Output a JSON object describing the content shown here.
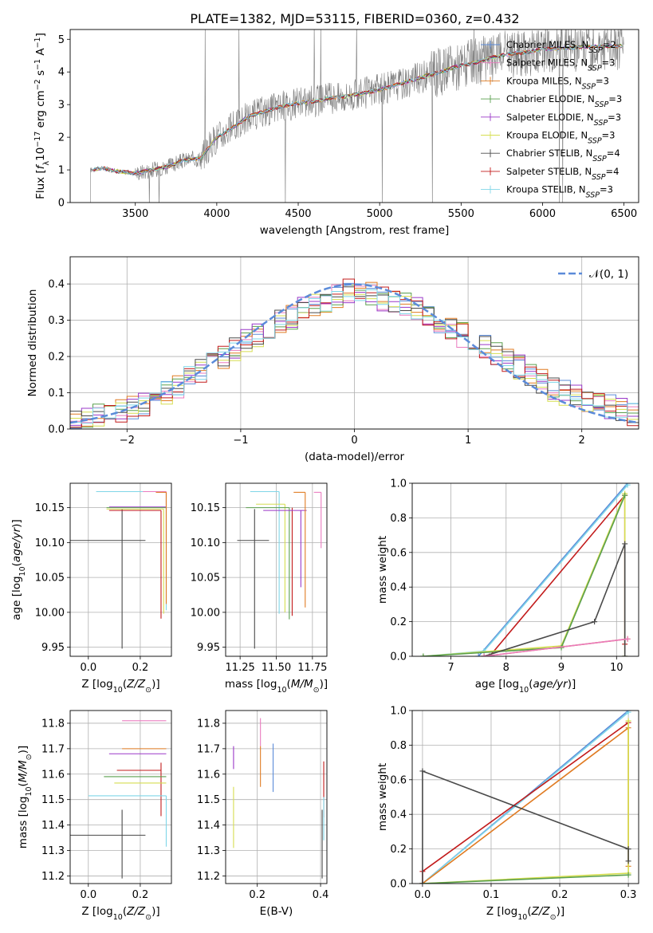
{
  "title": "PLATE=1382, MJD=53115, FIBERID=0360, z=0.432",
  "colors": {
    "Chabrier MILES": "#5b8bd9",
    "Salpeter MILES": "#ea7bbf",
    "Kroupa MILES": "#e07b22",
    "Chabrier ELODIE": "#5a9f4e",
    "Salpeter ELODIE": "#9a38c8",
    "Kroupa ELODIE": "#d6de50",
    "Chabrier STELIB": "#4a4a4a",
    "Salpeter STELIB": "#c21b1b",
    "Kroupa STELIB": "#7fd6e8"
  },
  "chart_data": [
    {
      "id": "spectrum",
      "type": "line",
      "xlabel": "wavelength [Angstrom, rest frame]",
      "ylabel": "Flux [f_λ 10^-17 erg cm^-2 s^-1 A^-1]",
      "xlim": [
        3100,
        6590
      ],
      "ylim": [
        0,
        5.3
      ],
      "xticks": [
        3500,
        4000,
        4500,
        5000,
        5500,
        6000,
        6500
      ],
      "yticks": [
        0,
        1,
        2,
        3,
        4,
        5
      ],
      "legend_position": "right",
      "legend": [
        {
          "model": "Chabrier MILES",
          "base": "Chabrier MILES, N",
          "sub": "SSP",
          "eq": "=2"
        },
        {
          "model": "Salpeter MILES",
          "base": "Salpeter MILES, N",
          "sub": "SSP",
          "eq": "=3"
        },
        {
          "model": "Kroupa MILES",
          "base": "Kroupa MILES, N",
          "sub": "SSP",
          "eq": "=3"
        },
        {
          "model": "Chabrier ELODIE",
          "base": "Chabrier ELODIE, N",
          "sub": "SSP",
          "eq": "=3"
        },
        {
          "model": "Salpeter ELODIE",
          "base": "Salpeter ELODIE, N",
          "sub": "SSP",
          "eq": "=3"
        },
        {
          "model": "Kroupa ELODIE",
          "base": "Kroupa ELODIE, N",
          "sub": "SSP",
          "eq": "=3"
        },
        {
          "model": "Chabrier STELIB",
          "base": "Chabrier STELIB, N",
          "sub": "SSP",
          "eq": "=4"
        },
        {
          "model": "Salpeter STELIB",
          "base": "Salpeter STELIB, N",
          "sub": "SSP",
          "eq": "=4"
        },
        {
          "model": "Kroupa STELIB",
          "base": "Kroupa STELIB, N",
          "sub": "SSP",
          "eq": "=3"
        }
      ],
      "continuum": [
        [
          3225,
          1.0
        ],
        [
          3300,
          1.05
        ],
        [
          3400,
          0.95
        ],
        [
          3500,
          0.9
        ],
        [
          3600,
          1.0
        ],
        [
          3700,
          1.1
        ],
        [
          3800,
          1.3
        ],
        [
          3900,
          1.35
        ],
        [
          4000,
          2.0
        ],
        [
          4100,
          2.3
        ],
        [
          4200,
          2.65
        ],
        [
          4300,
          2.8
        ],
        [
          4400,
          2.95
        ],
        [
          4500,
          3.05
        ],
        [
          4600,
          3.1
        ],
        [
          4700,
          3.2
        ],
        [
          4800,
          3.25
        ],
        [
          4900,
          3.35
        ],
        [
          5000,
          3.45
        ],
        [
          5100,
          3.6
        ],
        [
          5200,
          3.75
        ],
        [
          5300,
          3.9
        ],
        [
          5400,
          4.05
        ],
        [
          5500,
          4.2
        ],
        [
          5600,
          4.3
        ],
        [
          5700,
          4.45
        ],
        [
          5800,
          4.55
        ],
        [
          5900,
          4.6
        ],
        [
          6000,
          4.7
        ],
        [
          6100,
          4.72
        ],
        [
          6200,
          4.75
        ],
        [
          6300,
          4.78
        ],
        [
          6400,
          4.78
        ],
        [
          6500,
          4.8
        ]
      ]
    },
    {
      "id": "residuals",
      "type": "histogram",
      "xlabel": "(data-model)/error",
      "ylabel": "Normed distribution",
      "xlim": [
        -2.5,
        2.5
      ],
      "ylim": [
        0,
        0.475
      ],
      "xticks": [
        -2,
        -1,
        0,
        1,
        2
      ],
      "yticks": [
        0.0,
        0.1,
        0.2,
        0.3,
        0.4
      ],
      "bin_width": 0.1,
      "bin_start": -2.5,
      "reference": {
        "label": "𝒩(0, 1)",
        "mean": 0,
        "sigma": 1,
        "color": "#5b8bd9"
      },
      "legend_position": "top-right",
      "profile": [
        0.025,
        0.03,
        0.04,
        0.045,
        0.05,
        0.06,
        0.07,
        0.08,
        0.1,
        0.12,
        0.14,
        0.16,
        0.18,
        0.2,
        0.22,
        0.24,
        0.26,
        0.28,
        0.3,
        0.31,
        0.33,
        0.34,
        0.35,
        0.37,
        0.38,
        0.38,
        0.37,
        0.36,
        0.35,
        0.34,
        0.33,
        0.32,
        0.3,
        0.28,
        0.26,
        0.25,
        0.23,
        0.21,
        0.19,
        0.17,
        0.15,
        0.13,
        0.11,
        0.1,
        0.09,
        0.08,
        0.07,
        0.06,
        0.05,
        0.04
      ]
    },
    {
      "id": "age-vs-Z",
      "type": "errorbar",
      "xlabel": "Z [log10(Z/Z⊙)]",
      "ylabel": "age [log10(age/yr)]",
      "xlim": [
        -0.07,
        0.32
      ],
      "ylim": [
        9.937,
        10.185
      ],
      "xticks": [
        0.0,
        0.2
      ],
      "yticks": [
        9.95,
        10.0,
        10.05,
        10.1,
        10.15
      ],
      "points": [
        {
          "model": "Chabrier STELIB",
          "x": 0.13,
          "xerr": [
            0.23,
            0.09
          ],
          "y": 10.103,
          "yerr": [
            0.155,
            0.045
          ]
        },
        {
          "model": "Salpeter ELODIE",
          "x": 0.3,
          "xerr": [
            0.22,
            0.0
          ],
          "y": 10.151,
          "yerr": [
            0.0,
            0.0
          ]
        },
        {
          "model": "Chabrier ELODIE",
          "x": 0.3,
          "xerr": [
            0.23,
            0.0
          ],
          "y": 10.15,
          "yerr": [
            0.0,
            0.0
          ]
        },
        {
          "model": "Kroupa STELIB",
          "x": 0.3,
          "xerr": [
            0.27,
            0.0
          ],
          "y": 10.173,
          "yerr": [
            0.17,
            0.0
          ]
        },
        {
          "model": "Salpeter MILES",
          "x": 0.3,
          "xerr": [
            0.09,
            0.0
          ],
          "y": 10.173,
          "yerr": [
            0.07,
            0.0
          ]
        },
        {
          "model": "Kroupa MILES",
          "x": 0.3,
          "xerr": [
            0.04,
            0.0
          ],
          "y": 10.172,
          "yerr": [
            0.16,
            0.0
          ]
        },
        {
          "model": "Kroupa ELODIE",
          "x": 0.29,
          "xerr": [
            0.22,
            0.0
          ],
          "y": 10.148,
          "yerr": [
            0.15,
            0.0
          ]
        },
        {
          "model": "Salpeter STELIB",
          "x": 0.28,
          "xerr": [
            0.2,
            0.0
          ],
          "y": 10.146,
          "yerr": [
            0.155,
            0.0
          ]
        }
      ]
    },
    {
      "id": "age-vs-mass",
      "type": "errorbar",
      "xlabel": "mass [log10(M/M⊙)]",
      "ylabel": "",
      "xlim": [
        11.15,
        11.85
      ],
      "ylim": [
        9.937,
        10.185
      ],
      "xticks": [
        11.25,
        11.5,
        11.75
      ],
      "yticks": [
        9.95,
        10.0,
        10.05,
        10.1,
        10.15
      ],
      "points": [
        {
          "model": "Chabrier STELIB",
          "x": 11.35,
          "xerr": [
            0.12,
            0.1
          ],
          "y": 10.103,
          "yerr": [
            0.155,
            0.045
          ]
        },
        {
          "model": "Kroupa STELIB",
          "x": 11.52,
          "xerr": [
            0.2,
            0.0
          ],
          "y": 10.173,
          "yerr": [
            0.175,
            0.0
          ]
        },
        {
          "model": "Kroupa ELODIE",
          "x": 11.56,
          "xerr": [
            0.2,
            0.0
          ],
          "y": 10.155,
          "yerr": [
            0.155,
            0.0
          ]
        },
        {
          "model": "Chabrier ELODIE",
          "x": 11.59,
          "xerr": [
            0.3,
            0.0
          ],
          "y": 10.15,
          "yerr": [
            0.16,
            0.0
          ]
        },
        {
          "model": "Salpeter STELIB",
          "x": 11.61,
          "xerr": [
            0.0,
            0.0
          ],
          "y": 10.15,
          "yerr": [
            0.155,
            0.0
          ]
        },
        {
          "model": "Salpeter ELODIE",
          "x": 11.67,
          "xerr": [
            0.26,
            0.04
          ],
          "y": 10.146,
          "yerr": [
            0.11,
            0.0
          ]
        },
        {
          "model": "Kroupa MILES",
          "x": 11.7,
          "xerr": [
            0.08,
            0.0
          ],
          "y": 10.172,
          "yerr": [
            0.165,
            0.0
          ]
        },
        {
          "model": "Salpeter MILES",
          "x": 11.81,
          "xerr": [
            0.05,
            0.0
          ],
          "y": 10.172,
          "yerr": [
            0.08,
            0.0
          ]
        }
      ]
    },
    {
      "id": "massweight-vs-age",
      "type": "line",
      "xlabel": "age [log10(age/yr)]",
      "ylabel": "mass weight",
      "xlim": [
        6.3,
        10.4
      ],
      "ylim": [
        0,
        1
      ],
      "xticks": [
        7,
        8,
        9,
        10
      ],
      "yticks": [
        0.0,
        0.2,
        0.4,
        0.6,
        0.8,
        1.0
      ],
      "series": [
        {
          "model": "Chabrier MILES",
          "x": [
            7.5,
            10.2
          ],
          "y": [
            0.0,
            1.0
          ]
        },
        {
          "model": "Kroupa STELIB",
          "x": [
            6.5,
            7.6,
            10.2
          ],
          "y": [
            0.0,
            0.03,
            0.99
          ]
        },
        {
          "model": "Salpeter STELIB",
          "x": [
            7.7,
            10.15,
            10.15
          ],
          "y": [
            0.0,
            0.93,
            0.07
          ]
        },
        {
          "model": "Kroupa ELODIE",
          "x": [
            6.5,
            9.0,
            10.15,
            10.15
          ],
          "y": [
            0.0,
            0.06,
            0.94,
            0.0
          ]
        },
        {
          "model": "Chabrier ELODIE",
          "x": [
            6.5,
            9.0,
            10.15
          ],
          "y": [
            0.0,
            0.05,
            0.93
          ]
        },
        {
          "model": "Chabrier STELIB",
          "x": [
            7.6,
            9.6,
            10.15,
            10.15
          ],
          "y": [
            0.0,
            0.2,
            0.65,
            0.0
          ]
        },
        {
          "model": "Kroupa MILES",
          "x": [
            7.6,
            10.2
          ],
          "y": [
            0.0,
            0.1
          ]
        },
        {
          "model": "Salpeter MILES",
          "x": [
            7.6,
            10.2
          ],
          "y": [
            0.0,
            0.1
          ]
        }
      ]
    },
    {
      "id": "mass-vs-Z",
      "type": "errorbar",
      "xlabel": "Z [log10(Z/Z⊙)]",
      "ylabel": "mass [log10(M/M⊙)]",
      "xlim": [
        -0.07,
        0.32
      ],
      "ylim": [
        11.17,
        11.85
      ],
      "xticks": [
        0.0,
        0.2
      ],
      "yticks": [
        11.2,
        11.3,
        11.4,
        11.5,
        11.6,
        11.7,
        11.8
      ],
      "points": [
        {
          "model": "Chabrier STELIB",
          "x": 0.13,
          "xerr": [
            0.2,
            0.09
          ],
          "y": 11.36,
          "yerr": [
            0.17,
            0.1
          ]
        },
        {
          "model": "Salpeter MILES",
          "x": 0.3,
          "xerr": [
            0.17,
            0.0
          ],
          "y": 11.81,
          "yerr": [
            0.0,
            0.0
          ]
        },
        {
          "model": "Kroupa MILES",
          "x": 0.3,
          "xerr": [
            0.17,
            0.0
          ],
          "y": 11.7,
          "yerr": [
            0.0,
            0.0
          ]
        },
        {
          "model": "Salpeter ELODIE",
          "x": 0.3,
          "xerr": [
            0.22,
            0.0
          ],
          "y": 11.68,
          "yerr": [
            0.0,
            0.0
          ]
        },
        {
          "model": "Salpeter STELIB",
          "x": 0.28,
          "xerr": [
            0.17,
            0.0
          ],
          "y": 11.615,
          "yerr": [
            0.18,
            0.03
          ]
        },
        {
          "model": "Chabrier ELODIE",
          "x": 0.3,
          "xerr": [
            0.24,
            0.0
          ],
          "y": 11.59,
          "yerr": [
            0.0,
            0.0
          ]
        },
        {
          "model": "Kroupa ELODIE",
          "x": 0.3,
          "xerr": [
            0.2,
            0.0
          ],
          "y": 11.565,
          "yerr": [
            0.0,
            0.0
          ]
        },
        {
          "model": "Kroupa STELIB",
          "x": 0.3,
          "xerr": [
            0.3,
            0.0
          ],
          "y": 11.515,
          "yerr": [
            0.2,
            0.0
          ]
        }
      ]
    },
    {
      "id": "mass-vs-EBV",
      "type": "errorbar",
      "xlabel": "E(B-V)",
      "ylabel": "",
      "xlim": [
        0.1,
        0.42
      ],
      "ylim": [
        11.17,
        11.85
      ],
      "xticks": [
        0.2,
        0.4
      ],
      "yticks": [
        11.2,
        11.3,
        11.4,
        11.5,
        11.6,
        11.7,
        11.8
      ],
      "points": [
        {
          "model": "Salpeter ELODIE",
          "x": 0.125,
          "xerr": [
            0,
            0
          ],
          "y": 11.68,
          "yerr": [
            0.06,
            0.03
          ]
        },
        {
          "model": "Kroupa ELODIE",
          "x": 0.125,
          "xerr": [
            0,
            0
          ],
          "y": 11.5,
          "yerr": [
            0.19,
            0.05
          ]
        },
        {
          "model": "Salpeter MILES",
          "x": 0.21,
          "xerr": [
            0,
            0
          ],
          "y": 11.76,
          "yerr": [
            0.05,
            0.06
          ]
        },
        {
          "model": "Kroupa MILES",
          "x": 0.21,
          "xerr": [
            0,
            0
          ],
          "y": 11.67,
          "yerr": [
            0.12,
            0.04
          ]
        },
        {
          "model": "Chabrier MILES",
          "x": 0.25,
          "xerr": [
            0,
            0
          ],
          "y": 11.62,
          "yerr": [
            0.09,
            0.1
          ]
        },
        {
          "model": "Chabrier STELIB",
          "x": 0.405,
          "xerr": [
            0,
            0
          ],
          "y": 11.36,
          "yerr": [
            0.17,
            0.1
          ]
        },
        {
          "model": "Salpeter STELIB",
          "x": 0.41,
          "xerr": [
            0,
            0
          ],
          "y": 11.6,
          "yerr": [
            0.17,
            0.05
          ]
        },
        {
          "model": "Kroupa STELIB",
          "x": 0.41,
          "xerr": [
            0,
            0
          ],
          "y": 11.44,
          "yerr": [
            0.1,
            0.07
          ]
        }
      ]
    },
    {
      "id": "massweight-vs-Z",
      "type": "line",
      "xlabel": "Z [log10(Z/Z⊙)]",
      "ylabel": "mass weight",
      "xlim": [
        -0.015,
        0.315
      ],
      "ylim": [
        0,
        1
      ],
      "xticks": [
        0.0,
        0.1,
        0.2,
        0.3
      ],
      "yticks": [
        0.0,
        0.2,
        0.4,
        0.6,
        0.8,
        1.0
      ],
      "series": [
        {
          "model": "Chabrier MILES",
          "x": [
            0.0,
            0.3
          ],
          "y": [
            0.0,
            1.0
          ]
        },
        {
          "model": "Kroupa STELIB",
          "x": [
            0.0,
            0.3
          ],
          "y": [
            0.0,
            0.99
          ]
        },
        {
          "model": "Kroupa MILES",
          "x": [
            0.0,
            0.3,
            0.3
          ],
          "y": [
            0.0,
            0.9,
            0.1
          ]
        },
        {
          "model": "Salpeter STELIB",
          "x": [
            0.0,
            0.0,
            0.3
          ],
          "y": [
            0.0,
            0.07,
            0.93
          ]
        },
        {
          "model": "Kroupa ELODIE",
          "x": [
            0.0,
            0.3,
            0.3
          ],
          "y": [
            0.0,
            0.06,
            0.94
          ]
        },
        {
          "model": "Chabrier ELODIE",
          "x": [
            0.0,
            0.3
          ],
          "y": [
            0.0,
            0.05
          ]
        },
        {
          "model": "Chabrier STELIB",
          "x": [
            0.0,
            0.0,
            0.3,
            0.3
          ],
          "y": [
            0.0,
            0.65,
            0.2,
            0.13
          ]
        }
      ]
    }
  ]
}
